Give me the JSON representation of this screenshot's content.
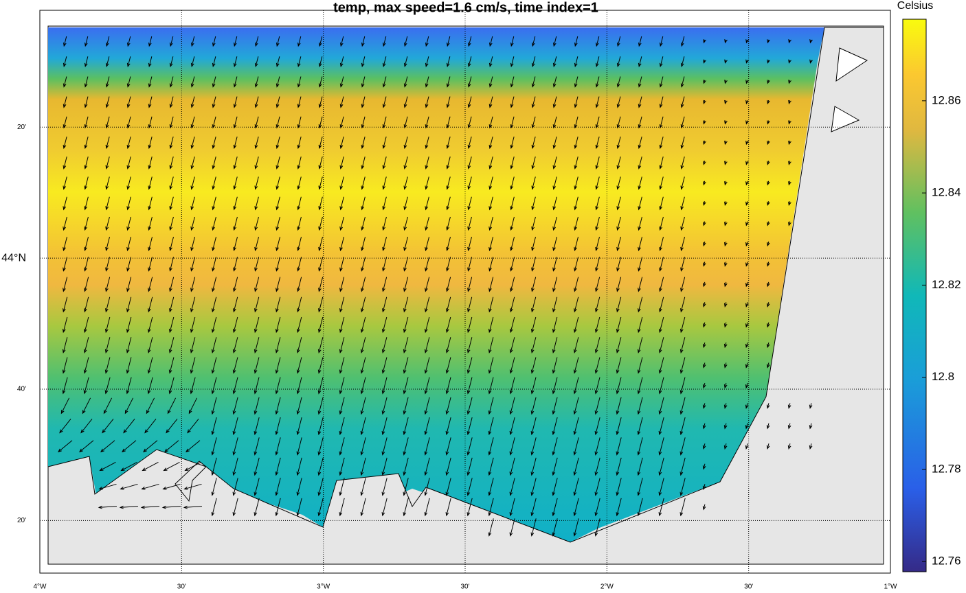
{
  "map": {
    "title": "temp, max speed=1.6 cm/s, time index=1",
    "lonlim": [
      -4,
      -1
    ],
    "latlim": [
      43.222,
      44.59
    ],
    "lon_ticks": [
      {
        "value": -4,
        "label": "4°W"
      },
      {
        "value": -3.5,
        "label": "30'"
      },
      {
        "value": -3,
        "label": "3°W"
      },
      {
        "value": -2.5,
        "label": "30'"
      },
      {
        "value": -2,
        "label": "2°W"
      },
      {
        "value": -1.5,
        "label": "30'"
      },
      {
        "value": -1,
        "label": "1°W"
      }
    ],
    "lat_ticks": [
      {
        "value": 43.333,
        "label": "20'"
      },
      {
        "value": 43.667,
        "label": "40'"
      },
      {
        "value": 44,
        "label": "44°N"
      },
      {
        "value": 44.333,
        "label": "20'"
      }
    ],
    "grid": true,
    "colorbar": {
      "label": "Celsius",
      "lim": [
        12.7578,
        12.8777
      ],
      "ticks": [
        12.76,
        12.78,
        12.8,
        12.82,
        12.84,
        12.86
      ]
    }
  }
}
